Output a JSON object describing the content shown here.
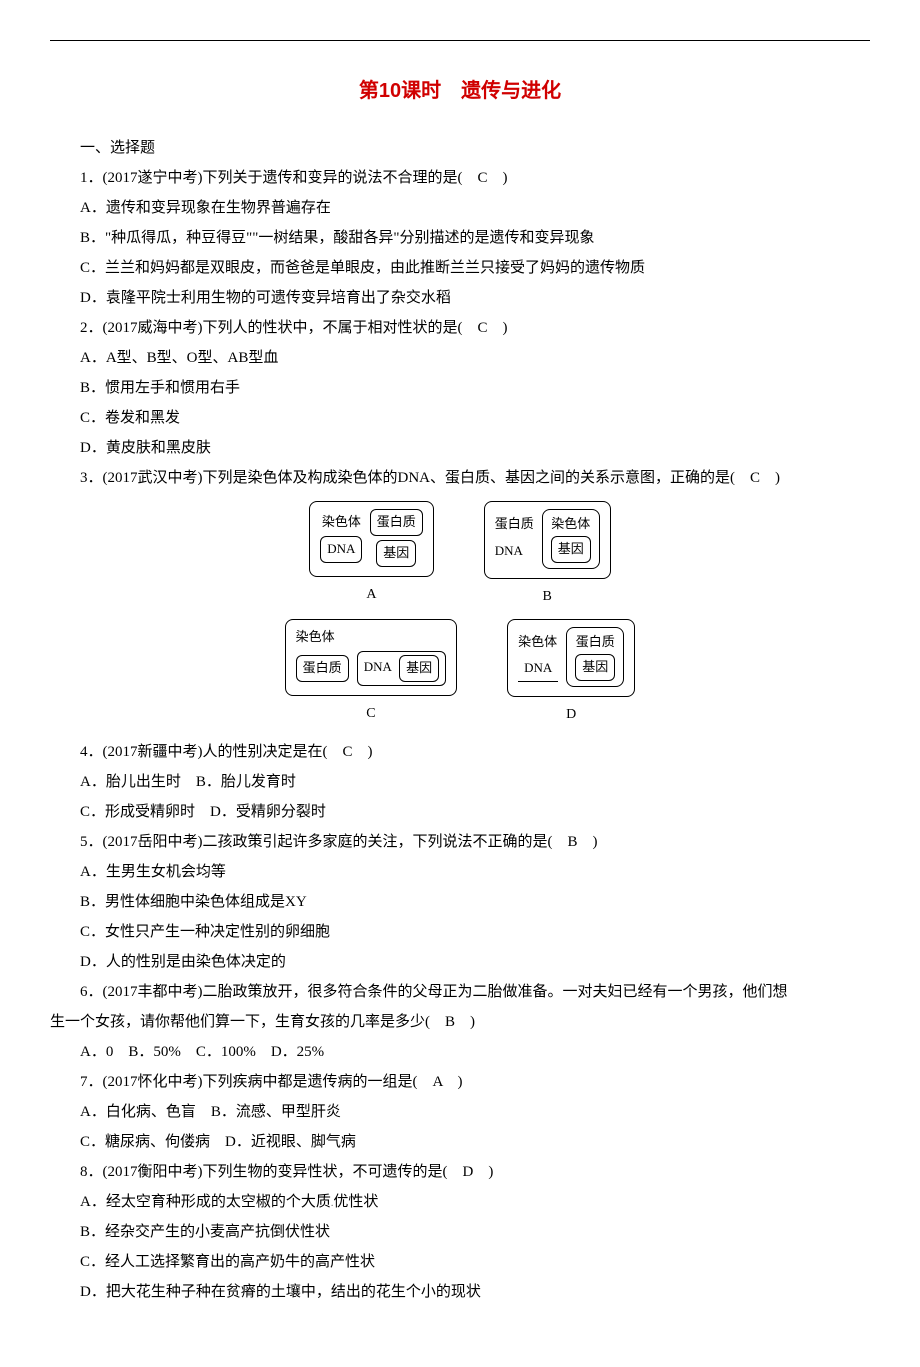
{
  "title": "第10课时　遗传与进化",
  "section_heading": "一、选择题",
  "q1": {
    "stem": "1．(2017遂宁中考)下列关于遗传和变异的说法不合理的是(　C　)",
    "a": "A．遗传和变异现象在生物界普遍存在",
    "b": "B．\"种瓜得瓜，种豆得豆\"\"一树结果，酸甜各异\"分别描述的是遗传和变异现象",
    "c": "C．兰兰和妈妈都是双眼皮，而爸爸是单眼皮，由此推断兰兰只接受了妈妈的遗传物质",
    "d": "D．袁隆平院士利用生物的可遗传变异培育出了杂交水稻"
  },
  "q2": {
    "stem": "2．(2017威海中考)下列人的性状中，不属于相对性状的是(　C　)",
    "a": "A．A型、B型、O型、AB型血",
    "b": "B．惯用左手和惯用右手",
    "c": "C．卷发和黑发",
    "d": "D．黄皮肤和黑皮肤"
  },
  "q3": {
    "stem": "3．(2017武汉中考)下列是染色体及构成染色体的DNA、蛋白质、基因之间的关系示意图，正确的是(　C　)",
    "lbl": {
      "chrom": "染色体",
      "protein": "蛋白质",
      "dna": "DNA",
      "gene": "基因"
    },
    "caps": {
      "a": "A",
      "b": "B",
      "c": "C",
      "d": "D"
    }
  },
  "q4": {
    "stem": "4．(2017新疆中考)人的性别决定是在(　C　)",
    "line1": "A．胎儿出生时　B．胎儿发育时",
    "line2": "C．形成受精卵时　D．受精卵分裂时"
  },
  "q5": {
    "stem": "5．(2017岳阳中考)二孩政策引起许多家庭的关注，下列说法不正确的是(　B　)",
    "a": "A．生男生女机会均等",
    "b": "B．男性体细胞中染色体组成是XY",
    "c": "C．女性只产生一种决定性别的卵细胞",
    "d": "D．人的性别是由染色体决定的"
  },
  "q6": {
    "line1": "6．(2017丰都中考)二胎政策放开，很多符合条件的父母正为二胎做准备。一对夫妇已经有一个男孩，他们想",
    "line2": "生一个女孩，请你帮他们算一下，生育女孩的几率是多少(　B　)",
    "opts": "A．0　B．50%　C．100%　D．25%"
  },
  "q7": {
    "stem": "7．(2017怀化中考)下列疾病中都是遗传病的一组是(　A　)",
    "line1": "A．白化病、色盲　B．流感、甲型肝炎",
    "line2": "C．糖尿病、佝偻病　D．近视眼、脚气病"
  },
  "q8": {
    "stem": "8．(2017衡阳中考)下列生物的变异性状，不可遗传的是(　D　)",
    "a_pre": "A．经太空育种形成的太空椒的个大质",
    "a_post": "优性状",
    "b": "B．经杂交产生的小麦高产抗倒伏性状",
    "c": "C．经人工选择繁育出的高产奶牛的高产性状",
    "d": "D．把大花生种子种在贫瘠的土壤中，结出的花生个小的现状"
  }
}
